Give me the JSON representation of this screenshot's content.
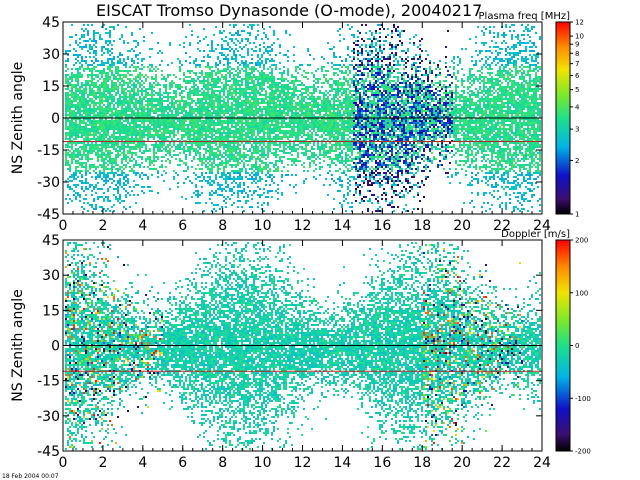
{
  "title": "EISCAT Tromso Dynasonde (O-mode),  20040217",
  "timestamp": "18 Feb 2004 00:07",
  "colors": {
    "ref_line_zero": "#000000",
    "ref_line_lower": "#b02828"
  },
  "chart_data": [
    {
      "type": "heatmap",
      "ylabel": "NS Zenith angle",
      "xlim": [
        0,
        24
      ],
      "ylim": [
        -45,
        45
      ],
      "x_ticks": [
        0,
        2,
        4,
        6,
        8,
        10,
        12,
        14,
        16,
        18,
        20,
        22,
        24
      ],
      "x_tick_labels": [
        "0",
        "2",
        "4",
        "6",
        "8",
        "10",
        "12",
        "14",
        "16",
        "18",
        "20",
        "22",
        "24"
      ],
      "y_ticks": [
        -45,
        -30,
        -15,
        0,
        15,
        30,
        45
      ],
      "y_tick_labels": [
        "-45",
        "-30",
        "-15",
        "0",
        "15",
        "30",
        "45"
      ],
      "reference_lines_y": [
        0,
        -11
      ],
      "colorbar": {
        "label": "Plasma freq [MHz]",
        "scale": "log",
        "range": [
          1,
          12
        ],
        "ticks": [
          1,
          2,
          3,
          4,
          5,
          6,
          7,
          8,
          9,
          10,
          12
        ],
        "tick_labels": [
          "1",
          "2",
          "3",
          "4",
          "5",
          "6",
          "7",
          "8",
          "9",
          "10",
          "12"
        ]
      }
    },
    {
      "type": "heatmap",
      "ylabel": "NS Zenith angle",
      "xlim": [
        0,
        24
      ],
      "ylim": [
        -45,
        45
      ],
      "x_ticks": [
        0,
        2,
        4,
        6,
        8,
        10,
        12,
        14,
        16,
        18,
        20,
        22,
        24
      ],
      "x_tick_labels": [
        "0",
        "2",
        "4",
        "6",
        "8",
        "10",
        "12",
        "14",
        "16",
        "18",
        "20",
        "22",
        "24"
      ],
      "y_ticks": [
        -45,
        -30,
        -15,
        0,
        15,
        30,
        45
      ],
      "y_tick_labels": [
        "-45",
        "-30",
        "-15",
        "0",
        "15",
        "30",
        "45"
      ],
      "reference_lines_y": [
        0,
        -11
      ],
      "colorbar": {
        "label": "Doppler [m/s]",
        "scale": "linear",
        "range": [
          -200,
          200
        ],
        "ticks": [
          -200,
          -100,
          0,
          100,
          200
        ],
        "tick_labels": [
          "-200",
          "-100",
          "0",
          "100",
          "200"
        ]
      }
    }
  ]
}
